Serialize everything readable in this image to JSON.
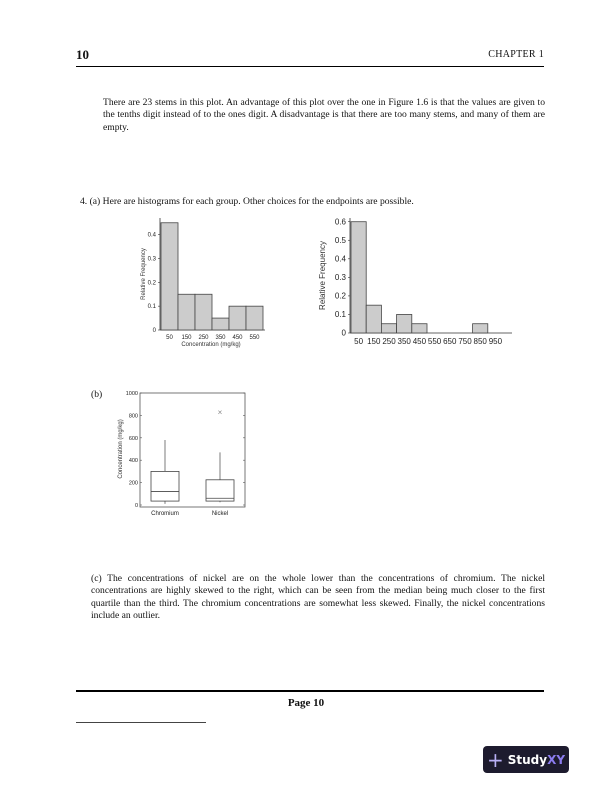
{
  "header": {
    "page_number": "10",
    "chapter": "CHAPTER 1"
  },
  "paragraphs": {
    "intro": "There are 23 stems in this plot. An advantage of this plot over the one in Figure 1.6 is that the values are given to the tenths digit instead of to the ones digit. A disadvantage is that there are too many stems, and many of them are empty.",
    "q4a": "4. (a) Here are histograms for each group. Other choices for the endpoints are possible.",
    "q4b_label": "(b)",
    "q4c": "(c) The concentrations of nickel are on the whole lower than the concentrations of chromium. The nickel concentrations are highly skewed to the right, which can be seen from the median being much closer to the first quartile than the third. The chromium concentrations are somewhat less skewed. Finally, the nickel concentrations include an outlier."
  },
  "footer": {
    "page_label": "Page 10",
    "brand": {
      "prefix": "Study",
      "suffix": "XY",
      "icon": "plus-icon",
      "bg": "#1d1b2e",
      "accent": "#8c7cf0"
    }
  },
  "chart_data": [
    {
      "type": "bar",
      "xlabel": "Concentration (mg/kg)",
      "ylabel": "Relative Frequency",
      "categories": [
        "50",
        "150",
        "250",
        "350",
        "450",
        "550"
      ],
      "values": [
        0.45,
        0.15,
        0.15,
        0.05,
        0.1,
        0.1
      ],
      "yticks": [
        "0",
        "0.1",
        "0.2",
        "0.3",
        "0.4"
      ],
      "ylim": [
        0,
        0.47
      ],
      "bar_color": "#cccccc"
    },
    {
      "type": "bar",
      "xlabel": "",
      "ylabel": "Relative Frequency",
      "categories": [
        "50",
        "150",
        "250",
        "350",
        "450",
        "550",
        "650",
        "750",
        "850",
        "950"
      ],
      "values": [
        0.6,
        0.15,
        0.05,
        0.1,
        0.05,
        0,
        0,
        0,
        0.05,
        0
      ],
      "yticks": [
        "0",
        "0.1",
        "0.2",
        "0.3",
        "0.4",
        "0.5",
        "0.6"
      ],
      "ylim": [
        0,
        0.62
      ],
      "bar_color": "#cccccc"
    },
    {
      "type": "box",
      "ylabel": "Concentration (mg/kg)",
      "yticks": [
        "0",
        "200",
        "400",
        "600",
        "800",
        "1000"
      ],
      "ylim": [
        0,
        1000
      ],
      "groups": [
        {
          "name": "Chromium",
          "min": 10,
          "q1": 35,
          "median": 120,
          "q3": 300,
          "max": 580,
          "outliers": []
        },
        {
          "name": "Nickel",
          "min": 25,
          "q1": 35,
          "median": 60,
          "q3": 225,
          "max": 470,
          "outliers": [
            830
          ]
        }
      ]
    }
  ]
}
